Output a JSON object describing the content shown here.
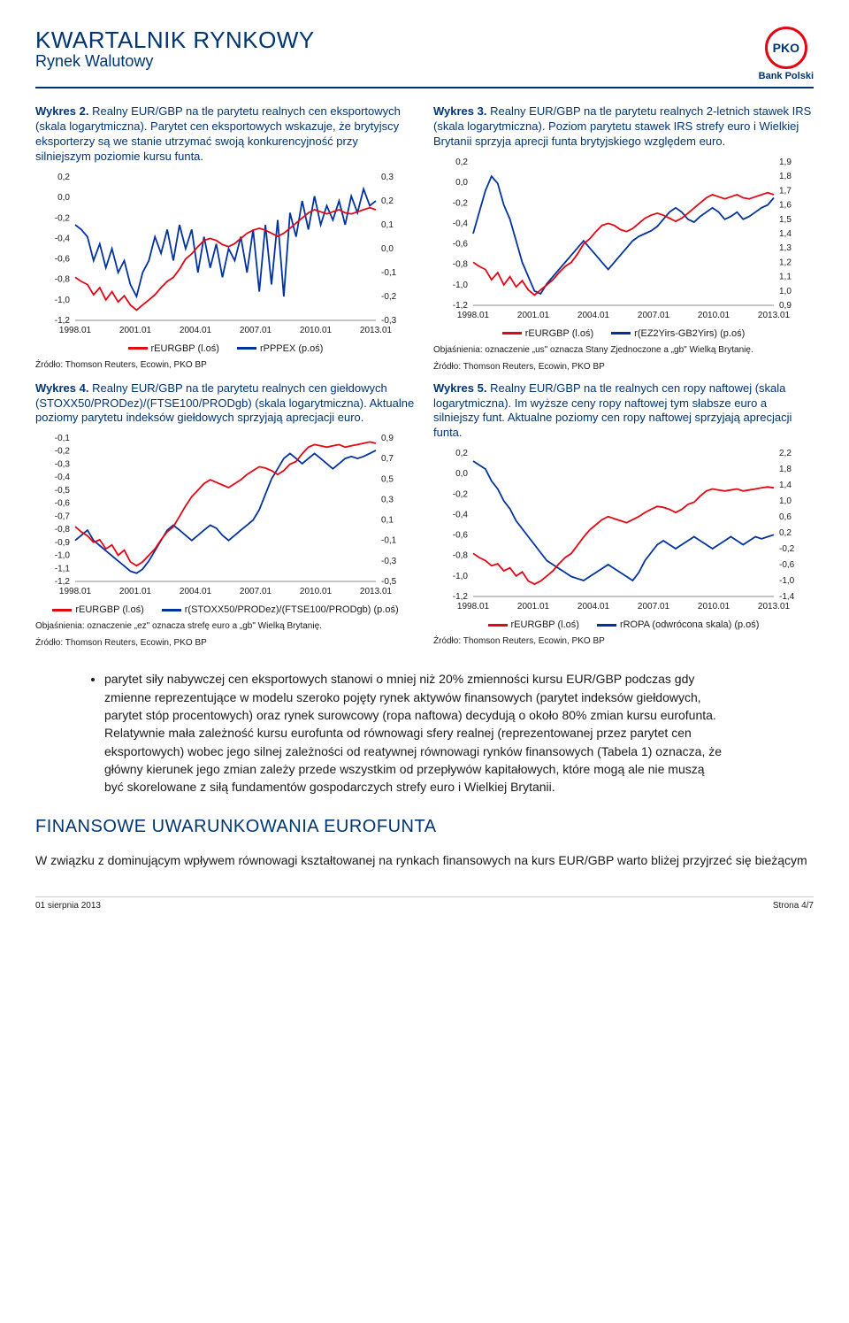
{
  "header": {
    "title_main": "KWARTALNIK RYNKOWY",
    "title_sub": "Rynek Walutowy",
    "logo_text": "PKO",
    "logo_sub": "Bank Polski"
  },
  "colors": {
    "primary_blue": "#003574",
    "series_red": "#e30613",
    "series_blue": "#0033a0",
    "axis": "#888888",
    "text": "#1a1a1a",
    "bg": "#ffffff"
  },
  "charts": {
    "c2": {
      "title_prefix": "Wykres 2. ",
      "title": "Realny EUR/GBP na tle parytetu realnych cen eksportowych (skala logarytmiczna). Parytet cen eksportowych wskazuje, że brytyjscy eksporterzy są we stanie utrzymać swoją konkurencyjność przy silniejszym poziomie kursu funta.",
      "x_labels": [
        "1998.01",
        "2001.01",
        "2004.01",
        "2007.01",
        "2010.01",
        "2013.01"
      ],
      "left_ticks": [
        "0,2",
        "0,0",
        "-0,2",
        "-0,4",
        "-0,6",
        "-0,8",
        "-1,0",
        "-1,2"
      ],
      "left_range": [
        -1.2,
        0.2
      ],
      "right_ticks": [
        "0,3",
        "0,2",
        "0,1",
        "0,0",
        "-0,1",
        "-0,2",
        "-0,3"
      ],
      "right_range": [
        -0.3,
        0.3
      ],
      "series_red": {
        "label": "rEURGBP (l.oś)",
        "color": "#e30613",
        "axis": "left",
        "y": [
          -0.78,
          -0.82,
          -0.85,
          -0.95,
          -0.88,
          -1.0,
          -0.92,
          -1.02,
          -0.96,
          -1.05,
          -1.1,
          -1.05,
          -1.0,
          -0.95,
          -0.88,
          -0.82,
          -0.78,
          -0.7,
          -0.6,
          -0.55,
          -0.48,
          -0.42,
          -0.4,
          -0.42,
          -0.46,
          -0.48,
          -0.45,
          -0.4,
          -0.35,
          -0.32,
          -0.3,
          -0.32,
          -0.35,
          -0.38,
          -0.35,
          -0.3,
          -0.25,
          -0.2,
          -0.15,
          -0.12,
          -0.14,
          -0.16,
          -0.14,
          -0.12,
          -0.15,
          -0.16,
          -0.14,
          -0.12,
          -0.1,
          -0.12
        ]
      },
      "series_blue": {
        "label": "rPPPEX (p.oś)",
        "color": "#0033a0",
        "axis": "right",
        "y": [
          0.1,
          0.08,
          0.05,
          -0.05,
          0.02,
          -0.08,
          0.0,
          -0.1,
          -0.05,
          -0.15,
          -0.2,
          -0.1,
          -0.05,
          0.05,
          -0.02,
          0.08,
          -0.05,
          0.1,
          0.0,
          0.08,
          -0.1,
          0.05,
          -0.08,
          0.02,
          -0.12,
          0.0,
          -0.05,
          0.05,
          -0.1,
          0.08,
          -0.18,
          0.1,
          -0.15,
          0.12,
          -0.2,
          0.15,
          0.05,
          0.2,
          0.08,
          0.22,
          0.1,
          0.18,
          0.12,
          0.2,
          0.1,
          0.22,
          0.15,
          0.25,
          0.18,
          0.2
        ]
      },
      "source": "Źródło: Thomson Reuters, Ecowin, PKO BP"
    },
    "c3": {
      "title_prefix": "Wykres 3. ",
      "title": "Realny EUR/GBP na tle parytetu realnych 2-letnich stawek IRS (skala logarytmiczna). Poziom parytetu stawek IRS strefy euro i Wielkiej Brytanii sprzyja aprecji funta brytyjskiego względem euro.",
      "x_labels": [
        "1998.01",
        "2001.01",
        "2004.01",
        "2007.01",
        "2010.01",
        "2013.01"
      ],
      "left_ticks": [
        "0,2",
        "0,0",
        "-0,2",
        "-0,4",
        "-0,6",
        "-0,8",
        "-1,0",
        "-1,2"
      ],
      "left_range": [
        -1.2,
        0.2
      ],
      "right_ticks": [
        "1,9",
        "1,8",
        "1,7",
        "1,6",
        "1,5",
        "1,4",
        "1,3",
        "1,2",
        "1,1",
        "1,0",
        "0,9"
      ],
      "right_range": [
        0.9,
        1.9
      ],
      "series_red": {
        "label": "rEURGBP (l.oś)",
        "color": "#e30613",
        "axis": "left",
        "y": [
          -0.78,
          -0.82,
          -0.85,
          -0.95,
          -0.88,
          -1.0,
          -0.92,
          -1.02,
          -0.96,
          -1.05,
          -1.1,
          -1.05,
          -1.0,
          -0.95,
          -0.88,
          -0.82,
          -0.78,
          -0.7,
          -0.6,
          -0.55,
          -0.48,
          -0.42,
          -0.4,
          -0.42,
          -0.46,
          -0.48,
          -0.45,
          -0.4,
          -0.35,
          -0.32,
          -0.3,
          -0.32,
          -0.35,
          -0.38,
          -0.35,
          -0.3,
          -0.25,
          -0.2,
          -0.15,
          -0.12,
          -0.14,
          -0.16,
          -0.14,
          -0.12,
          -0.15,
          -0.16,
          -0.14,
          -0.12,
          -0.1,
          -0.12
        ]
      },
      "series_blue": {
        "label": "r(EZ2Yirs-GB2Yirs) (p.oś)",
        "color": "#0033a0",
        "axis": "right",
        "y": [
          1.4,
          1.55,
          1.7,
          1.8,
          1.75,
          1.6,
          1.5,
          1.35,
          1.2,
          1.1,
          1.0,
          0.98,
          1.05,
          1.1,
          1.15,
          1.2,
          1.25,
          1.3,
          1.35,
          1.3,
          1.25,
          1.2,
          1.15,
          1.2,
          1.25,
          1.3,
          1.35,
          1.38,
          1.4,
          1.42,
          1.45,
          1.5,
          1.55,
          1.58,
          1.55,
          1.5,
          1.48,
          1.52,
          1.55,
          1.58,
          1.55,
          1.5,
          1.52,
          1.55,
          1.5,
          1.52,
          1.55,
          1.58,
          1.6,
          1.65
        ]
      },
      "note": "Objaśnienia: oznaczenie „us\" oznacza Stany Zjednoczone a „gb\" Wielką Brytanię.",
      "source": "Źródło: Thomson Reuters, Ecowin, PKO BP"
    },
    "c4": {
      "title_prefix": "Wykres 4. ",
      "title": "Realny EUR/GBP na tle parytetu realnych cen giełdowych (STOXX50/PRODez)/(FTSE100/PRODgb) (skala logarytmiczna). Aktualne poziomy parytetu indeksów giełdowych sprzyjają aprecjacji euro.",
      "x_labels": [
        "1998.01",
        "2001.01",
        "2004.01",
        "2007.01",
        "2010.01",
        "2013.01"
      ],
      "left_ticks": [
        "-0,1",
        "-0,2",
        "-0,3",
        "-0,4",
        "-0,5",
        "-0,6",
        "-0,7",
        "-0,8",
        "-0,9",
        "-1,0",
        "-1,1",
        "-1,2"
      ],
      "left_range": [
        -1.2,
        -0.1
      ],
      "right_ticks": [
        "0,9",
        "0,7",
        "0,5",
        "0,3",
        "0,1",
        "-0,1",
        "-0,3",
        "-0,5"
      ],
      "right_range": [
        -0.5,
        0.9
      ],
      "series_red": {
        "label": "rEURGBP (l.oś)",
        "color": "#e30613",
        "axis": "left",
        "y": [
          -0.78,
          -0.82,
          -0.85,
          -0.9,
          -0.88,
          -0.95,
          -0.92,
          -1.0,
          -0.96,
          -1.05,
          -1.08,
          -1.05,
          -1.0,
          -0.95,
          -0.88,
          -0.82,
          -0.78,
          -0.7,
          -0.62,
          -0.55,
          -0.5,
          -0.45,
          -0.42,
          -0.44,
          -0.46,
          -0.48,
          -0.45,
          -0.42,
          -0.38,
          -0.35,
          -0.32,
          -0.33,
          -0.35,
          -0.38,
          -0.35,
          -0.3,
          -0.28,
          -0.22,
          -0.17,
          -0.15,
          -0.16,
          -0.17,
          -0.16,
          -0.15,
          -0.17,
          -0.16,
          -0.15,
          -0.14,
          -0.13,
          -0.14
        ]
      },
      "series_blue": {
        "label": "r(STOXX50/PRODez)/(FTSE100/PRODgb) (p.oś)",
        "color": "#0033a0",
        "axis": "right",
        "y": [
          -0.1,
          -0.05,
          0.0,
          -0.1,
          -0.15,
          -0.2,
          -0.25,
          -0.3,
          -0.35,
          -0.4,
          -0.42,
          -0.38,
          -0.3,
          -0.2,
          -0.1,
          0.0,
          0.05,
          0.0,
          -0.05,
          -0.1,
          -0.05,
          0.0,
          0.05,
          0.02,
          -0.05,
          -0.1,
          -0.05,
          0.0,
          0.05,
          0.1,
          0.2,
          0.35,
          0.5,
          0.6,
          0.7,
          0.75,
          0.7,
          0.65,
          0.7,
          0.75,
          0.7,
          0.65,
          0.6,
          0.65,
          0.7,
          0.72,
          0.7,
          0.72,
          0.75,
          0.78
        ]
      },
      "note": "Objaśnienia: oznaczenie „ez\" oznacza strefę euro a „gb\" Wielką Brytanię.",
      "source": "Źródło: Thomson Reuters, Ecowin, PKO BP"
    },
    "c5": {
      "title_prefix": "Wykres 5. ",
      "title": "Realny EUR/GBP na tle realnych cen ropy naftowej (skala logarytmiczna). Im wyższe ceny ropy naftowej tym słabsze euro a silniejszy funt. Aktualne poziomy cen ropy naftowej sprzyjają aprecjacji funta.",
      "x_labels": [
        "1998.01",
        "2001.01",
        "2004.01",
        "2007.01",
        "2010.01",
        "2013.01"
      ],
      "left_ticks": [
        "0,2",
        "0,0",
        "-0,2",
        "-0,4",
        "-0,6",
        "-0,8",
        "-1,0",
        "-1,2"
      ],
      "left_range": [
        -1.2,
        0.2
      ],
      "right_ticks": [
        "2,2",
        "1,8",
        "1,4",
        "1,0",
        "0,6",
        "0,2",
        "-0,2",
        "-0,6",
        "-1,0",
        "-1,4"
      ],
      "right_range": [
        -1.4,
        2.2
      ],
      "series_red": {
        "label": "rEURGBP (l.oś)",
        "color": "#e30613",
        "axis": "left",
        "y": [
          -0.78,
          -0.82,
          -0.85,
          -0.9,
          -0.88,
          -0.95,
          -0.92,
          -1.0,
          -0.96,
          -1.05,
          -1.08,
          -1.05,
          -1.0,
          -0.95,
          -0.88,
          -0.82,
          -0.78,
          -0.7,
          -0.62,
          -0.55,
          -0.5,
          -0.45,
          -0.42,
          -0.44,
          -0.46,
          -0.48,
          -0.45,
          -0.42,
          -0.38,
          -0.35,
          -0.32,
          -0.33,
          -0.35,
          -0.38,
          -0.35,
          -0.3,
          -0.28,
          -0.22,
          -0.17,
          -0.15,
          -0.16,
          -0.17,
          -0.16,
          -0.15,
          -0.17,
          -0.16,
          -0.15,
          -0.14,
          -0.13,
          -0.14
        ]
      },
      "series_blue": {
        "label": "rROPA (odwrócona skala) (p.oś)",
        "color": "#0033a0",
        "axis": "right",
        "y": [
          2.0,
          1.9,
          1.8,
          1.5,
          1.3,
          1.0,
          0.8,
          0.5,
          0.3,
          0.1,
          -0.1,
          -0.3,
          -0.5,
          -0.6,
          -0.7,
          -0.8,
          -0.9,
          -0.95,
          -1.0,
          -0.9,
          -0.8,
          -0.7,
          -0.6,
          -0.7,
          -0.8,
          -0.9,
          -1.0,
          -0.8,
          -0.5,
          -0.3,
          -0.1,
          0.0,
          -0.1,
          -0.2,
          -0.1,
          0.0,
          0.1,
          0.0,
          -0.1,
          -0.2,
          -0.1,
          0.0,
          0.1,
          0.0,
          -0.1,
          0.0,
          0.1,
          0.05,
          0.1,
          0.15
        ]
      },
      "source": "Źródło: Thomson Reuters, Ecowin, PKO BP"
    }
  },
  "body": {
    "bullet": "parytet siły nabywczej cen eksportowych stanowi o mniej niż 20% zmienności kursu EUR/GBP podczas gdy zmienne reprezentujące w modelu szeroko pojęty rynek aktywów finansowych (parytet indeksów giełdowych, parytet stóp procentowych) oraz rynek surowcowy (ropa naftowa) decydują o około 80% zmian kursu eurofunta. Relatywnie mała zależność kursu eurofunta od równowagi sfery realnej (reprezentowanej przez parytet cen eksportowych) wobec jego silnej zależności od reatywnej równowagi rynków finansowych (Tabela 1) oznacza, że główny kierunek jego zmian zależy przede wszystkim od przepływów kapitałowych, które mogą ale nie muszą być skorelowane z siłą fundamentów gospodarczych strefy euro i Wielkiej Brytanii."
  },
  "section_heading": "FINANSOWE UWARUNKOWANIA EUROFUNTA",
  "closing_para": "W związku z dominującym wpływem równowagi kształtowanej na rynkach finansowych na kurs EUR/GBP warto bliżej przyjrzeć się bieżącym",
  "footer": {
    "left": "01 sierpnia 2013",
    "right": "Strona 4/7"
  }
}
